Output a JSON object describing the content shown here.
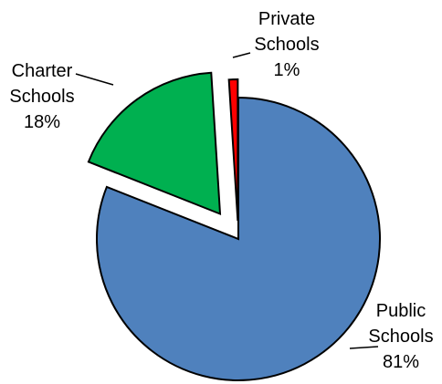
{
  "chart_data": {
    "type": "pie",
    "slices": [
      {
        "label_lines": [
          "Public",
          "Schools",
          "81%"
        ],
        "value": 81,
        "color": "#4f81bd"
      },
      {
        "label_lines": [
          "Charter",
          "Schools",
          "18%"
        ],
        "value": 18,
        "color": "#00b050"
      },
      {
        "label_lines": [
          "Private",
          "Schools",
          "1%"
        ],
        "value": 1,
        "color": "#ff0000"
      }
    ],
    "legend": "none"
  }
}
